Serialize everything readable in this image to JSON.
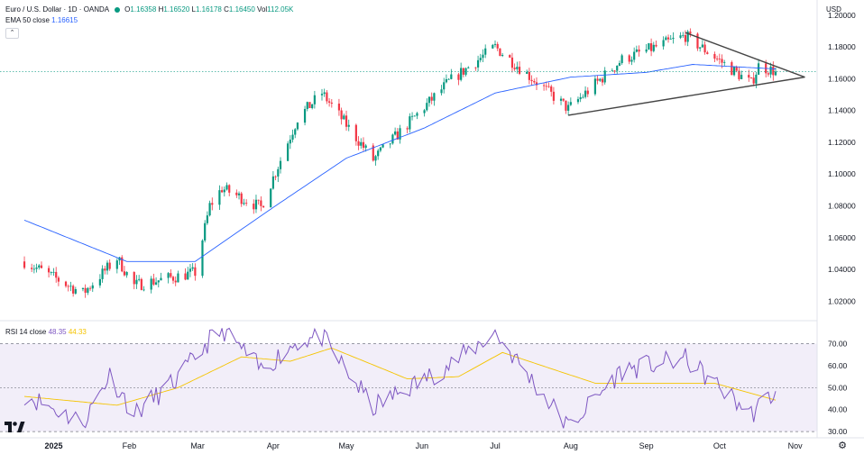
{
  "header": {
    "symbol": "Euro / U.S. Dollar · 1D · OANDA",
    "o_label": "O",
    "o_value": "1.16358",
    "h_label": "H",
    "h_value": "1.16520",
    "l_label": "L",
    "l_value": "1.16178",
    "c_label": "C",
    "c_value": "1.16450",
    "vol_label": "Vol",
    "vol_value": "112.05K",
    "ema_label": "EMA 50 close",
    "ema_value": "1.16615",
    "currency": "USD"
  },
  "rsi_legend": {
    "label": "RSI 14 close",
    "rsi_value": "48.35",
    "ma_value": "44.33"
  },
  "colors": {
    "up": "#089981",
    "down": "#f23645",
    "ema": "#2962ff",
    "rsi": "#7e57c2",
    "rsi_ma": "#f5c400",
    "rsi_band": "#7e57c2",
    "trendline": "#444444",
    "price_line": "#089981"
  },
  "icons": {
    "settings": "gear-icon",
    "logo": "tradingview-logo-icon",
    "collapse": "chevron-up-icon"
  },
  "chart_data": [
    {
      "type": "candlestick",
      "title": "Euro / U.S. Dollar · 1D · OANDA",
      "ylim": [
        1.01,
        1.205
      ],
      "y_ticks": [
        "1.20000",
        "1.18000",
        "1.16000",
        "1.14000",
        "1.12000",
        "1.10000",
        "1.08000",
        "1.06000",
        "1.04000",
        "1.02000"
      ],
      "x_ticks": [
        "2025",
        "Feb",
        "Mar",
        "Apr",
        "May",
        "Jun",
        "Jul",
        "Aug",
        "Sep",
        "Oct",
        "Nov"
      ],
      "close_key_points": [
        {
          "date": "2024-12-20",
          "close": 1.045
        },
        {
          "date": "2025-01-13",
          "close": 1.025
        },
        {
          "date": "2025-01-27",
          "close": 1.047
        },
        {
          "date": "2025-02-03",
          "close": 1.03
        },
        {
          "date": "2025-02-28",
          "close": 1.038
        },
        {
          "date": "2025-03-06",
          "close": 1.08
        },
        {
          "date": "2025-03-11",
          "close": 1.091
        },
        {
          "date": "2025-03-27",
          "close": 1.079
        },
        {
          "date": "2025-04-11",
          "close": 1.135
        },
        {
          "date": "2025-04-21",
          "close": 1.151
        },
        {
          "date": "2025-05-12",
          "close": 1.109
        },
        {
          "date": "2025-06-12",
          "close": 1.158
        },
        {
          "date": "2025-07-01",
          "close": 1.18
        },
        {
          "date": "2025-07-31",
          "close": 1.141
        },
        {
          "date": "2025-08-22",
          "close": 1.172
        },
        {
          "date": "2025-09-17",
          "close": 1.187
        },
        {
          "date": "2025-10-14",
          "close": 1.157
        },
        {
          "date": "2025-10-17",
          "close": 1.168
        },
        {
          "date": "2025-10-24",
          "close": 1.1645
        }
      ],
      "ema50": [
        {
          "date": "2024-12-20",
          "value": 1.071
        },
        {
          "date": "2025-01-31",
          "value": 1.045
        },
        {
          "date": "2025-02-28",
          "value": 1.045
        },
        {
          "date": "2025-04-01",
          "value": 1.079
        },
        {
          "date": "2025-05-01",
          "value": 1.11
        },
        {
          "date": "2025-06-02",
          "value": 1.129
        },
        {
          "date": "2025-07-01",
          "value": 1.151
        },
        {
          "date": "2025-08-01",
          "value": 1.161
        },
        {
          "date": "2025-09-01",
          "value": 1.164
        },
        {
          "date": "2025-09-20",
          "value": 1.169
        },
        {
          "date": "2025-10-24",
          "value": 1.16615
        }
      ],
      "trendlines": [
        {
          "from": {
            "date": "2025-09-17",
            "value": 1.189
          },
          "to": {
            "date": "2025-11-05",
            "value": 1.161
          }
        },
        {
          "from": {
            "date": "2025-07-31",
            "value": 1.137
          },
          "to": {
            "date": "2025-11-05",
            "value": 1.161
          }
        }
      ],
      "last_price": 1.1645
    },
    {
      "type": "line",
      "title": "RSI 14 close",
      "ylim": [
        28,
        78
      ],
      "y_ticks": [
        "70.00",
        "60.00",
        "50.00",
        "40.00",
        "30.00"
      ],
      "bands": [
        30,
        50,
        70
      ],
      "series": [
        {
          "name": "RSI 14 close",
          "values": [
            {
              "date": "2024-12-20",
              "v": 47
            },
            {
              "date": "2025-01-13",
              "v": 34
            },
            {
              "date": "2025-01-24",
              "v": 56
            },
            {
              "date": "2025-02-03",
              "v": 38
            },
            {
              "date": "2025-02-21",
              "v": 54
            },
            {
              "date": "2025-03-07",
              "v": 73
            },
            {
              "date": "2025-03-12",
              "v": 76
            },
            {
              "date": "2025-03-27",
              "v": 58
            },
            {
              "date": "2025-04-11",
              "v": 71
            },
            {
              "date": "2025-04-21",
              "v": 73
            },
            {
              "date": "2025-05-12",
              "v": 41
            },
            {
              "date": "2025-06-12",
              "v": 60
            },
            {
              "date": "2025-07-01",
              "v": 75
            },
            {
              "date": "2025-07-31",
              "v": 32
            },
            {
              "date": "2025-08-22",
              "v": 58
            },
            {
              "date": "2025-09-17",
              "v": 63
            },
            {
              "date": "2025-10-14",
              "v": 38
            },
            {
              "date": "2025-10-24",
              "v": 48.35
            }
          ]
        },
        {
          "name": "MA",
          "values": [
            {
              "date": "2024-12-20",
              "v": 46
            },
            {
              "date": "2025-01-27",
              "v": 42
            },
            {
              "date": "2025-02-21",
              "v": 50
            },
            {
              "date": "2025-03-19",
              "v": 64
            },
            {
              "date": "2025-04-08",
              "v": 62
            },
            {
              "date": "2025-04-25",
              "v": 68
            },
            {
              "date": "2025-05-26",
              "v": 54
            },
            {
              "date": "2025-06-16",
              "v": 55
            },
            {
              "date": "2025-07-04",
              "v": 66
            },
            {
              "date": "2025-08-11",
              "v": 52
            },
            {
              "date": "2025-09-08",
              "v": 52
            },
            {
              "date": "2025-09-29",
              "v": 52
            },
            {
              "date": "2025-10-24",
              "v": 44.33
            }
          ]
        }
      ]
    }
  ]
}
